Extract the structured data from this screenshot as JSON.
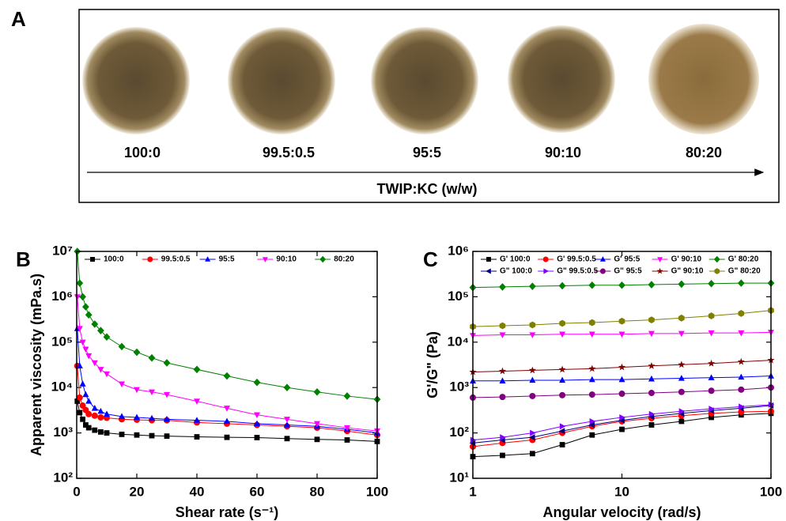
{
  "figure_a": {
    "label": "A",
    "samples": [
      "100:0",
      "99.5:0.5",
      "95:5",
      "90:10",
      "80:20"
    ],
    "axis_label": "TWIP:KC (w/w)"
  },
  "chart_data": [
    {
      "type": "line",
      "panel": "B",
      "xlabel": "Shear rate (s⁻¹)",
      "ylabel": "Apparent viscosity (mPa.s)",
      "ylog": true,
      "x": [
        0.2,
        1,
        2,
        3,
        4,
        6,
        8,
        10,
        15,
        20,
        25,
        30,
        40,
        50,
        60,
        70,
        80,
        90,
        100
      ],
      "xlim": [
        0,
        100
      ],
      "xticks": [
        0,
        20,
        40,
        60,
        80,
        100
      ],
      "ylim": [
        100,
        10000000
      ],
      "yticks": [
        {
          "value": 100,
          "label": "10²"
        },
        {
          "value": 1000,
          "label": "10³"
        },
        {
          "value": 10000,
          "label": "10⁴"
        },
        {
          "value": 100000,
          "label": "10⁵"
        },
        {
          "value": 1000000,
          "label": "10⁶"
        },
        {
          "value": 10000000,
          "label": "10⁷"
        }
      ],
      "series": [
        {
          "name": "100:0",
          "color": "#000000",
          "marker": "square",
          "values": [
            5000,
            2800,
            2000,
            1500,
            1300,
            1150,
            1050,
            1000,
            930,
            900,
            870,
            850,
            820,
            800,
            790,
            750,
            720,
            700,
            650
          ]
        },
        {
          "name": "99.5:0.5",
          "color": "#ff0000",
          "marker": "circle",
          "values": [
            30000,
            6000,
            4000,
            3200,
            2600,
            2400,
            2200,
            2150,
            2000,
            1950,
            1900,
            1900,
            1700,
            1600,
            1500,
            1400,
            1300,
            1100,
            900
          ]
        },
        {
          "name": "95:5",
          "color": "#0000ff",
          "marker": "triangle-up",
          "values": [
            200000,
            30000,
            12000,
            7000,
            5000,
            3500,
            3000,
            2600,
            2300,
            2200,
            2100,
            2000,
            1900,
            1800,
            1600,
            1500,
            1400,
            1200,
            1000
          ]
        },
        {
          "name": "90:10",
          "color": "#ff00ff",
          "marker": "triangle-down",
          "values": [
            1000000,
            200000,
            100000,
            70000,
            50000,
            35000,
            25000,
            20000,
            12000,
            9000,
            8000,
            7000,
            5000,
            3500,
            2500,
            2000,
            1600,
            1300,
            1100
          ]
        },
        {
          "name": "80:20",
          "color": "#008000",
          "marker": "diamond",
          "values": [
            10000000,
            2000000,
            1000000,
            600000,
            400000,
            250000,
            180000,
            130000,
            80000,
            60000,
            45000,
            35000,
            25000,
            18000,
            13000,
            10000,
            8000,
            6500,
            5500
          ]
        }
      ]
    },
    {
      "type": "line",
      "panel": "C",
      "xlabel": "Angular velocity (rad/s)",
      "ylabel": "G'/G\" (Pa)",
      "xlog": true,
      "ylog": true,
      "x": [
        1,
        1.58,
        2.51,
        3.98,
        6.31,
        10,
        15.8,
        25.1,
        39.8,
        63.1,
        100
      ],
      "xlim": [
        1,
        100
      ],
      "xticks": [
        1,
        10,
        100
      ],
      "ylim": [
        10,
        1000000
      ],
      "yticks": [
        {
          "value": 10,
          "label": "10¹"
        },
        {
          "value": 100,
          "label": "10²"
        },
        {
          "value": 1000,
          "label": "10³"
        },
        {
          "value": 10000,
          "label": "10⁴"
        },
        {
          "value": 100000,
          "label": "10⁵"
        },
        {
          "value": 1000000,
          "label": "10⁶"
        }
      ],
      "series": [
        {
          "name": "G' 100:0",
          "color": "#000000",
          "marker": "square",
          "values": [
            30,
            32,
            35,
            55,
            90,
            120,
            150,
            180,
            220,
            250,
            270
          ]
        },
        {
          "name": "G' 99.5:0.5",
          "color": "#ff0000",
          "marker": "circle",
          "values": [
            50,
            60,
            70,
            100,
            140,
            180,
            210,
            240,
            270,
            290,
            300
          ]
        },
        {
          "name": "G' 95:5",
          "color": "#0000ff",
          "marker": "triangle-up",
          "values": [
            1400,
            1400,
            1450,
            1450,
            1500,
            1500,
            1550,
            1600,
            1650,
            1700,
            1800
          ]
        },
        {
          "name": "G' 90:10",
          "color": "#ff00ff",
          "marker": "triangle-down",
          "values": [
            14000,
            14500,
            14500,
            15000,
            15000,
            15000,
            15500,
            15500,
            16000,
            16000,
            16500
          ]
        },
        {
          "name": "G' 80:20",
          "color": "#008000",
          "marker": "diamond",
          "values": [
            160000,
            165000,
            170000,
            175000,
            180000,
            180000,
            185000,
            190000,
            195000,
            200000,
            200000
          ]
        },
        {
          "name": "G\" 100:0",
          "color": "#000080",
          "marker": "triangle-left",
          "values": [
            60,
            70,
            80,
            110,
            150,
            190,
            230,
            270,
            310,
            350,
            400
          ]
        },
        {
          "name": "G\" 99.5:0.5",
          "color": "#8000ff",
          "marker": "triangle-right",
          "values": [
            70,
            80,
            100,
            140,
            180,
            220,
            260,
            300,
            340,
            380,
            420
          ]
        },
        {
          "name": "G\" 95:5",
          "color": "#800080",
          "marker": "circle",
          "values": [
            600,
            620,
            650,
            680,
            700,
            730,
            760,
            800,
            850,
            900,
            1000
          ]
        },
        {
          "name": "G\" 90:10",
          "color": "#800000",
          "marker": "star",
          "values": [
            2200,
            2300,
            2400,
            2500,
            2600,
            2800,
            3000,
            3200,
            3400,
            3700,
            4000
          ]
        },
        {
          "name": "G\" 80:20",
          "color": "#808000",
          "marker": "hexagon",
          "values": [
            22000,
            23000,
            24000,
            26000,
            27000,
            29000,
            31000,
            34000,
            38000,
            43000,
            50000
          ]
        }
      ]
    }
  ]
}
